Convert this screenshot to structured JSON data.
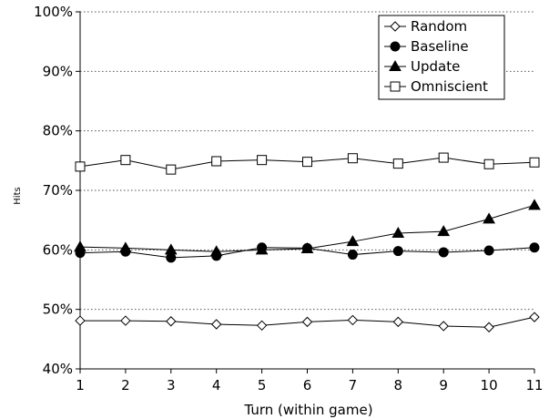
{
  "chart_data": {
    "type": "line",
    "title": "",
    "xlabel": "Turn (within game)",
    "ylabel": "Hits",
    "x": [
      1,
      2,
      3,
      4,
      5,
      6,
      7,
      8,
      9,
      10,
      11
    ],
    "ylim": [
      0.4,
      1.0
    ],
    "y_ticks": [
      "40%",
      "50%",
      "60%",
      "70%",
      "80%",
      "90%",
      "100%"
    ],
    "grid": "horizontal dotted",
    "legend_position": "top-right",
    "series": [
      {
        "name": "Random",
        "marker": "open-diamond",
        "values": [
          0.481,
          0.481,
          0.48,
          0.475,
          0.473,
          0.479,
          0.482,
          0.479,
          0.472,
          0.47,
          0.487
        ]
      },
      {
        "name": "Baseline",
        "marker": "filled-circle",
        "values": [
          0.595,
          0.597,
          0.587,
          0.59,
          0.604,
          0.603,
          0.592,
          0.598,
          0.596,
          0.599,
          0.604
        ]
      },
      {
        "name": "Update",
        "marker": "filled-triangle",
        "values": [
          0.605,
          0.603,
          0.6,
          0.597,
          0.6,
          0.602,
          0.614,
          0.628,
          0.631,
          0.652,
          0.675
        ]
      },
      {
        "name": "Omniscient",
        "marker": "open-square",
        "values": [
          0.74,
          0.751,
          0.735,
          0.749,
          0.751,
          0.748,
          0.754,
          0.745,
          0.755,
          0.744,
          0.747
        ]
      }
    ]
  }
}
